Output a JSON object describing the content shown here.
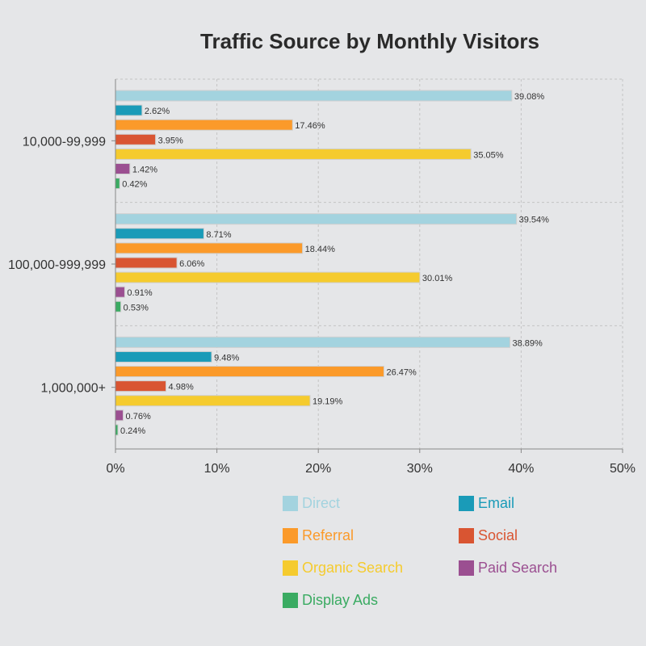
{
  "chart_data": {
    "type": "bar",
    "orientation": "horizontal",
    "title": "Traffic Source by Monthly Visitors",
    "categories": [
      "10,000-99,999",
      "100,000-999,999",
      "1,000,000+"
    ],
    "series": [
      {
        "name": "Direct",
        "color": "#a3d3df",
        "values": [
          39.08,
          39.54,
          38.89
        ]
      },
      {
        "name": "Email",
        "color": "#1a9bb8",
        "values": [
          2.62,
          8.71,
          9.48
        ]
      },
      {
        "name": "Referral",
        "color": "#fb9a2a",
        "values": [
          17.46,
          18.44,
          26.47
        ]
      },
      {
        "name": "Social",
        "color": "#d95532",
        "values": [
          3.95,
          6.06,
          4.98
        ]
      },
      {
        "name": "Organic Search",
        "color": "#f5cb2e",
        "values": [
          35.05,
          30.01,
          19.19
        ]
      },
      {
        "name": "Paid Search",
        "color": "#9b4f91",
        "values": [
          1.42,
          0.91,
          0.76
        ]
      },
      {
        "name": "Display Ads",
        "color": "#3aab62",
        "values": [
          0.42,
          0.53,
          0.24
        ]
      }
    ],
    "xlim": [
      0,
      50
    ],
    "xticks": [
      "0%",
      "10%",
      "20%",
      "30%",
      "40%",
      "50%"
    ],
    "grid": true,
    "legend_position": "bottom"
  }
}
